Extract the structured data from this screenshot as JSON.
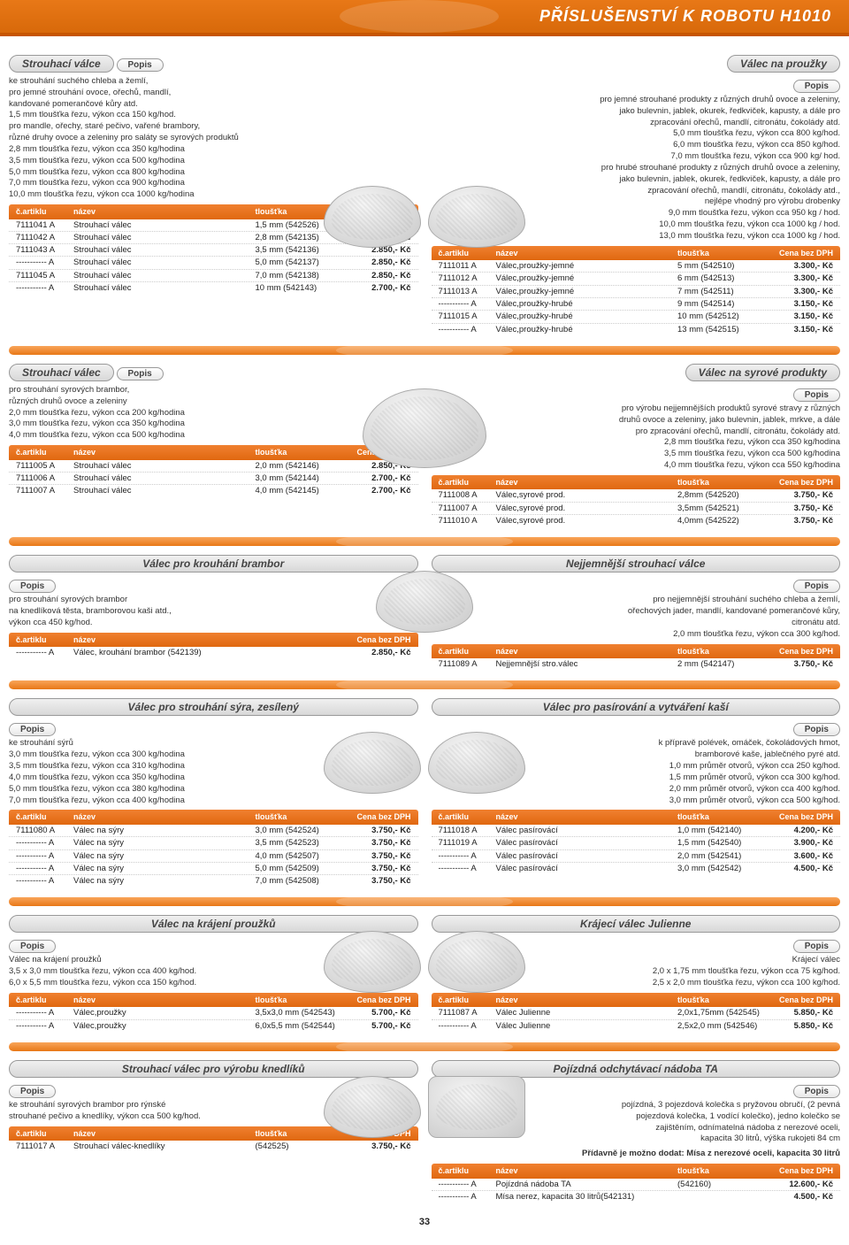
{
  "header": {
    "title": "PŘÍSLUŠENSTVÍ K ROBOTU H1010"
  },
  "labels": {
    "popis": "Popis",
    "cart": "č.artiklu",
    "nazev": "název",
    "tloustka": "tloušťka",
    "cena": "Cena bez DPH"
  },
  "s1": {
    "l": {
      "title": "Strouhací válce",
      "desc": "ke strouhání suchého chleba a žemlí,\npro jemné strouhání ovoce, ořechů, mandlí,\nkandované pomerančové kůry atd.\n1,5 mm tloušťka řezu, výkon cca 150 kg/hod.\npro mandle, ořechy, staré pečivo, vařené brambory,\nrůzné druhy ovoce a zeleniny pro saláty se syrových produktů\n2,8 mm tloušťka řezu,   výkon cca   350 kg/hodina\n3,5 mm tloušťka řezu,   výkon cca   500 kg/hodina\n5,0 mm tloušťka řezu,   výkon cca   800 kg/hodina\n7,0 mm tloušťka řezu,   výkon cca   900 kg/hodina\n10,0 mm tloušťka řezu, výkon cca 1000 kg/hodina",
      "rows": [
        {
          "a": "7111041 A",
          "n": "Strouhací válec",
          "t": "1,5 mm  (542526)",
          "p": "3.750,- Kč"
        },
        {
          "a": "7111042 A",
          "n": "Strouhací válec",
          "t": "2,8 mm  (542135)",
          "p": "2.850,- Kč"
        },
        {
          "a": "7111043 A",
          "n": "Strouhací válec",
          "t": "3,5 mm  (542136)",
          "p": "2.850,- Kč"
        },
        {
          "a": "----------- A",
          "n": "Strouhací válec",
          "t": "5,0 mm  (542137)",
          "p": "2.850,- Kč"
        },
        {
          "a": "7111045 A",
          "n": "Strouhací válec",
          "t": "7,0 mm  (542138)",
          "p": "2.850,- Kč"
        },
        {
          "a": "----------- A",
          "n": "Strouhací válec",
          "t": "10  mm  (542143)",
          "p": "2.700,- Kč"
        }
      ]
    },
    "r": {
      "title": "Válec na proužky",
      "desc": "pro jemné strouhané produkty z různých druhů ovoce a zeleniny,\njako bulevnin, jablek, okurek, ředkviček, kapusty, a dále pro\nzpracování ořechů, mandlí, citronátu, čokolády atd.\n5,0 mm tloušťka řezu, výkon cca 800 kg/hod.\n6,0 mm tloušťka řezu, výkon cca 850 kg/hod.\n7,0 mm tloušťka řezu, výkon cca 900 kg/ hod.\npro hrubé strouhané produkty z různých druhů ovoce a zeleniny,\njako bulevnin, jablek, okurek, ředkviček, kapusty, a dále pro\nzpracování ořechů, mandlí, citronátu, čokolády atd.,\nnejlépe vhodný pro výrobu drobenky\n9,0 mm tloušťka řezu, výkon cca  950 kg / hod.\n10,0 mm tloušťka řezu, výkon cca 1000 kg / hod.\n13,0 mm tloušťka řezu, výkon cca 1000 kg / hod.",
      "rows": [
        {
          "a": "7111011 A",
          "n": "Válec,proužky-jemné",
          "t": "5 mm (542510)",
          "p": "3.300,- Kč"
        },
        {
          "a": "7111012 A",
          "n": "Válec,proužky-jemné",
          "t": "6 mm (542513)",
          "p": "3.300,- Kč"
        },
        {
          "a": "7111013 A",
          "n": "Válec,proužky-jemné",
          "t": "7 mm (542511)",
          "p": "3.300,- Kč"
        },
        {
          "a": "----------- A",
          "n": "Válec,proužky-hrubé",
          "t": "9 mm (542514)",
          "p": "3.150,- Kč"
        },
        {
          "a": "7111015 A",
          "n": "Válec,proužky-hrubé",
          "t": "10 mm (542512)",
          "p": "3.150,- Kč"
        },
        {
          "a": "----------- A",
          "n": "Válec,proužky-hrubé",
          "t": "13 mm (542515)",
          "p": "3.150,- Kč"
        }
      ]
    }
  },
  "s2": {
    "l": {
      "title": "Strouhací válec",
      "desc": "pro strouhání syrových brambor,\nrůzných druhů ovoce a zeleniny\n2,0 mm tloušťka řezu, výkon cca 200 kg/hodina\n3,0 mm tloušťka řezu, výkon cca 350 kg/hodina\n4,0 mm tloušťka řezu, výkon cca 500 kg/hodina",
      "rows": [
        {
          "a": "7111005 A",
          "n": "Strouhací válec",
          "t": "2,0 mm  (542146)",
          "p": "2.850,- Kč"
        },
        {
          "a": "7111006 A",
          "n": "Strouhací válec",
          "t": "3,0 mm  (542144)",
          "p": "2.700,- Kč"
        },
        {
          "a": "7111007 A",
          "n": "Strouhací válec",
          "t": "4,0 mm  (542145)",
          "p": "2.700,- Kč"
        }
      ]
    },
    "r": {
      "title": "Válec na syrové produkty",
      "desc": "pro výrobu nejjemnějších produktů syrové stravy  z různých\ndruhů ovoce a zeleniny,  jako bulevnin, jablek, mrkve, a dále\npro zpracování ořechů, mandlí, citronátu, čokolády atd.\n2,8 mm tloušťka řezu, výkon cca 350 kg/hodina\n3,5 mm tloušťka řezu, výkon cca 500 kg/hodina\n4,0 mm tloušťka řezu, výkon cca 550 kg/hodina",
      "rows": [
        {
          "a": "7111008 A",
          "n": "Válec,syrové prod.",
          "t": "2,8mm (542520)",
          "p": "3.750,- Kč"
        },
        {
          "a": "7111007 A",
          "n": "Válec,syrové prod.",
          "t": "3,5mm (542521)",
          "p": "3.750,- Kč"
        },
        {
          "a": "7111010 A",
          "n": "Válec,syrové prod.",
          "t": "4,0mm (542522)",
          "p": "3.750,- Kč"
        }
      ]
    }
  },
  "s3": {
    "l": {
      "title": "Válec pro krouhání brambor",
      "desc": "pro strouhání syrových brambor\nna knedlíková těsta, bramborovou kaši atd.,\nvýkon cca 450 kg/hod.",
      "rows": [
        {
          "a": "----------- A",
          "n": "Válec, krouhání brambor (542139)",
          "t": "",
          "p": "2.850,- Kč"
        }
      ]
    },
    "r": {
      "title": "Nejjemnější strouhací válce",
      "desc": "pro nejjemnější strouhání suchého chleba a žemlí,\nořechových jader, mandlí, kandované pomerančové kůry,\ncitronátu atd.\n2,0 mm tloušťka řezu, výkon cca 300 kg/hod.",
      "rows": [
        {
          "a": "7111089 A",
          "n": "Nejjemnější stro.válec",
          "t": "2 mm (542147)",
          "p": "3.750,- Kč"
        }
      ]
    }
  },
  "s4": {
    "l": {
      "title": "Válec pro strouhání sýra, zesílený",
      "desc": "ke strouhání sýrů\n3,0 mm tloušťka řezu, výkon cca 300 kg/hodina\n3,5 mm tloušťka řezu, výkon cca 310 kg/hodina\n4,0 mm tloušťka řezu, výkon cca 350 kg/hodina\n5,0 mm tloušťka řezu, výkon cca 380 kg/hodina\n7,0 mm tloušťka řezu, výkon cca 400 kg/hodina",
      "rows": [
        {
          "a": "7111080 A",
          "n": "Válec na sýry",
          "t": "3,0  mm  (542524)",
          "p": "3.750,- Kč"
        },
        {
          "a": "----------- A",
          "n": "Válec na sýry",
          "t": "3,5  mm  (542523)",
          "p": "3.750,- Kč"
        },
        {
          "a": "----------- A",
          "n": "Válec na sýry",
          "t": "4,0  mm  (542507)",
          "p": "3.750,- Kč"
        },
        {
          "a": "----------- A",
          "n": "Válec na sýry",
          "t": "5,0  mm  (542509)",
          "p": "3.750,- Kč"
        },
        {
          "a": "----------- A",
          "n": "Válec na sýry",
          "t": "7,0  mm  (542508)",
          "p": "3.750,- Kč"
        }
      ]
    },
    "r": {
      "title": "Válec pro pasírování a vytváření kaší",
      "desc": "k přípravě polévek, omáček, čokoládových hmot,\nbramborové kaše, jablečného pyré atd.\n1,0 mm průměr otvorů, výkon cca 250 kg/hod.\n1,5 mm průměr otvorů, výkon cca 300 kg/hod.\n2,0 mm průměr otvorů, výkon cca 400 kg/hod.\n3,0 mm průměr otvorů, výkon cca 500 kg/hod.",
      "rows": [
        {
          "a": "7111018 A",
          "n": "Válec pasírovácí",
          "t": "1,0  mm  (542140)",
          "p": "4.200,- Kč"
        },
        {
          "a": "7111019 A",
          "n": "Válec pasírovácí",
          "t": "1,5  mm  (542540)",
          "p": "3.900,- Kč"
        },
        {
          "a": "----------- A",
          "n": "Válec pasírovácí",
          "t": "2,0  mm  (542541)",
          "p": "3.600,- Kč"
        },
        {
          "a": "----------- A",
          "n": "Válec pasírovácí",
          "t": "3,0  mm  (542542)",
          "p": "4.500,- Kč"
        }
      ]
    }
  },
  "s5": {
    "l": {
      "title": "Válec na krájení proužků",
      "desc": "Válec na krájení proužků\n3,5 x 3,0 mm tloušťka řezu, výkon cca 400 kg/hod.\n6,0 x 5,5 mm tloušťka řezu, výkon cca 150 kg/hod.",
      "rows": [
        {
          "a": "----------- A",
          "n": "Válec,proužky",
          "t": "3,5x3,0 mm (542543)",
          "p": "5.700,- Kč"
        },
        {
          "a": "----------- A",
          "n": "Válec,proužky",
          "t": "6,0x5,5 mm (542544)",
          "p": "5.700,- Kč"
        }
      ]
    },
    "r": {
      "title": "Krájecí válec Julienne",
      "desc": "Krájecí válec\n2,0 x 1,75 mm tloušťka řezu, výkon cca 75 kg/hod.\n2,5 x 2,0 mm tloušťka řezu, výkon cca 100 kg/hod.",
      "rows": [
        {
          "a": "7111087 A",
          "n": "Válec Julienne",
          "t": "2,0x1,75mm (542545)",
          "p": "5.850,- Kč"
        },
        {
          "a": "----------- A",
          "n": "Válec Julienne",
          "t": "2,5x2,0  mm (542546)",
          "p": "5.850,- Kč"
        }
      ]
    }
  },
  "s6": {
    "l": {
      "title": "Strouhací válec pro výrobu knedlíků",
      "desc": "ke strouhání syrových brambor pro rýnské\nstrouhané pečivo a knedlíky, výkon cca 500 kg/hod.",
      "rows": [
        {
          "a": "7111017 A",
          "n": "Strouhací válec-knedlíky",
          "t": "(542525)",
          "p": "3.750,- Kč"
        }
      ]
    },
    "r": {
      "title": "Pojízdná odchytávací nádoba TA",
      "desc": "pojízdná, 3 pojezdová kolečka s pryžovou obručí, (2 pevná\npojezdová kolečka, 1 vodící kolečko), jedno kolečko se\nzajištěním, odnímatelná nádoba z nerezové oceli,\nkapacita 30 litrů, výška rukojeti 84 cm",
      "add": "Přídavně je možno dodat: Mísa z nerezové oceli, kapacita 30 litrů",
      "rows": [
        {
          "a": "----------- A",
          "n": "Pojízdná nádoba TA",
          "t": "(542160)",
          "p": "12.600,- Kč"
        },
        {
          "a": "----------- A",
          "n": "Mísa nerez, kapacita 30 litrů(542131)",
          "t": "",
          "p": "4.500,- Kč"
        }
      ]
    }
  },
  "pagenum": "33"
}
